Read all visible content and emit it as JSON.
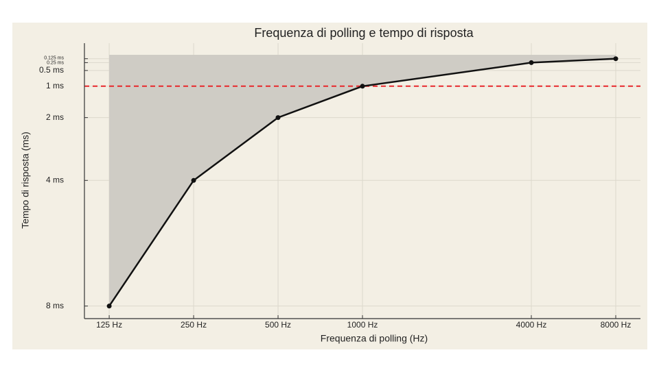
{
  "chart_data": {
    "type": "line",
    "title": "Frequenza di polling e tempo di risposta",
    "x_label": "Frequenza di polling (Hz)",
    "y_label": "Tempo di risposta (ms)",
    "x": [
      125,
      250,
      500,
      1000,
      4000,
      8000
    ],
    "series": [
      {
        "values": [
          8,
          4,
          2,
          1,
          0.25,
          0.125
        ],
        "color": "#111111"
      }
    ],
    "fill": {
      "color": "#cfccc5",
      "to": 0
    },
    "reference_line": {
      "value": 1,
      "color": "#e8262a"
    },
    "xscale": "log",
    "xlim": [
      102,
      9800
    ],
    "ylim": [
      8.4,
      -0.37
    ],
    "xticks": [
      {
        "value": 125,
        "label": "125 Hz"
      },
      {
        "value": 250,
        "label": "250 Hz"
      },
      {
        "value": 500,
        "label": "500 Hz"
      },
      {
        "value": 1000,
        "label": "1000 Hz"
      },
      {
        "value": 4000,
        "label": "4000 Hz"
      },
      {
        "value": 8000,
        "label": "8000 Hz"
      }
    ],
    "yticks": [
      {
        "value": 0.125,
        "label": "0.125 ms"
      },
      {
        "value": 0.25,
        "label": "0.25 ms"
      },
      {
        "value": 0.5,
        "label": "0.5 ms"
      },
      {
        "value": 1,
        "label": "1 ms"
      },
      {
        "value": 2,
        "label": "2 ms"
      },
      {
        "value": 4,
        "label": "4 ms"
      },
      {
        "value": 8,
        "label": "8 ms"
      }
    ],
    "grid": true
  }
}
